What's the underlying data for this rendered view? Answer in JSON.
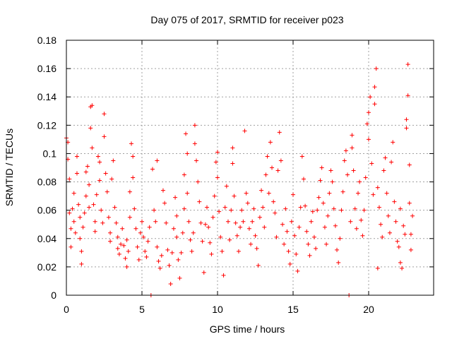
{
  "chart_data": {
    "type": "scatter",
    "title": "Day 075 of 2017, SRMTID for receiver p023",
    "xlabel": "GPS time / hours",
    "ylabel": "SRMTID / TECUs",
    "xlim": [
      0,
      24.3
    ],
    "ylim": [
      0,
      0.18
    ],
    "x_ticks": [
      0,
      5,
      10,
      15,
      20
    ],
    "y_ticks": [
      0,
      0.02,
      0.04,
      0.06,
      0.08,
      0.1,
      0.12,
      0.14,
      0.16,
      0.18
    ],
    "x_tick_labels": [
      "0",
      "5",
      "10",
      "15",
      "20"
    ],
    "y_tick_labels": [
      "0",
      "0.02",
      "0.04",
      "0.06",
      "0.08",
      "0.1",
      "0.12",
      "0.14",
      "0.16",
      "0.18"
    ],
    "grid": true,
    "marker": "+",
    "color": "#ff0000",
    "series": [
      {
        "name": "SRMTID",
        "points": [
          [
            0.0,
            0.111
          ],
          [
            0.1,
            0.108
          ],
          [
            0.1,
            0.096
          ],
          [
            0.2,
            0.082
          ],
          [
            0.2,
            0.058
          ],
          [
            0.3,
            0.047
          ],
          [
            0.3,
            0.034
          ],
          [
            0.4,
            0.061
          ],
          [
            0.5,
            0.072
          ],
          [
            0.5,
            0.052
          ],
          [
            0.6,
            0.044
          ],
          [
            0.7,
            0.098
          ],
          [
            0.7,
            0.086
          ],
          [
            0.8,
            0.064
          ],
          [
            0.9,
            0.055
          ],
          [
            0.9,
            0.04
          ],
          [
            1.0,
            0.031
          ],
          [
            1.0,
            0.022
          ],
          [
            1.1,
            0.048
          ],
          [
            1.2,
            0.058
          ],
          [
            1.3,
            0.07
          ],
          [
            1.3,
            0.087
          ],
          [
            1.4,
            0.091
          ],
          [
            1.5,
            0.078
          ],
          [
            1.5,
            0.062
          ],
          [
            1.6,
            0.133
          ],
          [
            1.6,
            0.118
          ],
          [
            1.7,
            0.134
          ],
          [
            1.7,
            0.104
          ],
          [
            1.8,
            0.064
          ],
          [
            1.9,
            0.052
          ],
          [
            1.9,
            0.045
          ],
          [
            2.0,
            0.071
          ],
          [
            2.1,
            0.098
          ],
          [
            2.2,
            0.094
          ],
          [
            2.2,
            0.081
          ],
          [
            2.3,
            0.06
          ],
          [
            2.4,
            0.051
          ],
          [
            2.5,
            0.128
          ],
          [
            2.5,
            0.112
          ],
          [
            2.6,
            0.086
          ],
          [
            2.7,
            0.073
          ],
          [
            2.8,
            0.055
          ],
          [
            2.9,
            0.044
          ],
          [
            2.9,
            0.038
          ],
          [
            3.0,
            0.082
          ],
          [
            3.1,
            0.095
          ],
          [
            3.2,
            0.062
          ],
          [
            3.3,
            0.051
          ],
          [
            3.4,
            0.041
          ],
          [
            3.4,
            0.033
          ],
          [
            3.5,
            0.029
          ],
          [
            3.6,
            0.036
          ],
          [
            3.7,
            0.047
          ],
          [
            3.8,
            0.035
          ],
          [
            3.9,
            0.026
          ],
          [
            4.0,
            0.02
          ],
          [
            4.0,
            0.039
          ],
          [
            4.1,
            0.031
          ],
          [
            4.2,
            0.055
          ],
          [
            4.2,
            0.073
          ],
          [
            4.3,
            0.107
          ],
          [
            4.4,
            0.098
          ],
          [
            4.4,
            0.083
          ],
          [
            4.5,
            0.061
          ],
          [
            4.6,
            0.047
          ],
          [
            4.7,
            0.034
          ],
          [
            4.8,
            0.025
          ],
          [
            4.9,
            0.044
          ],
          [
            5.0,
            0.052
          ],
          [
            5.1,
            0.041
          ],
          [
            5.2,
            0.031
          ],
          [
            5.3,
            0.027
          ],
          [
            5.4,
            0.038
          ],
          [
            5.5,
            0.048
          ],
          [
            5.6,
            0.0
          ],
          [
            5.7,
            0.089
          ],
          [
            5.8,
            0.06
          ],
          [
            5.9,
            0.052
          ],
          [
            6.0,
            0.034
          ],
          [
            6.0,
            0.095
          ],
          [
            6.1,
            0.024
          ],
          [
            6.2,
            0.019
          ],
          [
            6.3,
            0.028
          ],
          [
            6.4,
            0.074
          ],
          [
            6.5,
            0.065
          ],
          [
            6.6,
            0.051
          ],
          [
            6.7,
            0.032
          ],
          [
            6.8,
            0.021
          ],
          [
            6.9,
            0.008
          ],
          [
            7.0,
            0.03
          ],
          [
            7.1,
            0.047
          ],
          [
            7.2,
            0.069
          ],
          [
            7.3,
            0.056
          ],
          [
            7.3,
            0.041
          ],
          [
            7.4,
            0.025
          ],
          [
            7.5,
            0.012
          ],
          [
            7.6,
            0.03
          ],
          [
            7.7,
            0.044
          ],
          [
            7.8,
            0.061
          ],
          [
            7.8,
            0.085
          ],
          [
            7.9,
            0.114
          ],
          [
            8.0,
            0.1
          ],
          [
            8.0,
            0.072
          ],
          [
            8.1,
            0.052
          ],
          [
            8.2,
            0.039
          ],
          [
            8.3,
            0.031
          ],
          [
            8.4,
            0.044
          ],
          [
            8.5,
            0.12
          ],
          [
            8.5,
            0.107
          ],
          [
            8.6,
            0.095
          ],
          [
            8.7,
            0.08
          ],
          [
            8.8,
            0.066
          ],
          [
            8.9,
            0.051
          ],
          [
            9.0,
            0.038
          ],
          [
            9.1,
            0.016
          ],
          [
            9.2,
            0.05
          ],
          [
            9.3,
            0.062
          ],
          [
            9.4,
            0.048
          ],
          [
            9.5,
            0.037
          ],
          [
            9.6,
            0.029
          ],
          [
            9.7,
            0.055
          ],
          [
            9.8,
            0.07
          ],
          [
            9.9,
            0.094
          ],
          [
            10.0,
            0.101
          ],
          [
            10.0,
            0.083
          ],
          [
            10.1,
            0.059
          ],
          [
            10.2,
            0.041
          ],
          [
            10.3,
            0.031
          ],
          [
            10.4,
            0.014
          ],
          [
            10.5,
            0.062
          ],
          [
            10.6,
            0.077
          ],
          [
            10.7,
            0.052
          ],
          [
            10.8,
            0.039
          ],
          [
            10.9,
            0.06
          ],
          [
            11.0,
            0.104
          ],
          [
            11.0,
            0.093
          ],
          [
            11.1,
            0.07
          ],
          [
            11.2,
            0.051
          ],
          [
            11.3,
            0.042
          ],
          [
            11.4,
            0.031
          ],
          [
            11.5,
            0.048
          ],
          [
            11.6,
            0.06
          ],
          [
            11.7,
            0.052
          ],
          [
            11.8,
            0.116
          ],
          [
            11.9,
            0.072
          ],
          [
            12.0,
            0.065
          ],
          [
            12.1,
            0.047
          ],
          [
            12.2,
            0.036
          ],
          [
            12.3,
            0.052
          ],
          [
            12.4,
            0.061
          ],
          [
            12.5,
            0.042
          ],
          [
            12.6,
            0.033
          ],
          [
            12.7,
            0.021
          ],
          [
            12.8,
            0.055
          ],
          [
            12.9,
            0.074
          ],
          [
            13.0,
            0.062
          ],
          [
            13.1,
            0.048
          ],
          [
            13.2,
            0.085
          ],
          [
            13.3,
            0.098
          ],
          [
            13.4,
            0.072
          ],
          [
            13.5,
            0.108
          ],
          [
            13.6,
            0.09
          ],
          [
            13.7,
            0.066
          ],
          [
            13.8,
            0.058
          ],
          [
            13.9,
            0.041
          ],
          [
            14.0,
            0.088
          ],
          [
            14.1,
            0.115
          ],
          [
            14.2,
            0.095
          ],
          [
            14.3,
            0.05
          ],
          [
            14.4,
            0.036
          ],
          [
            14.5,
            0.061
          ],
          [
            14.6,
            0.045
          ],
          [
            14.7,
            0.031
          ],
          [
            14.8,
            0.022
          ],
          [
            14.9,
            0.052
          ],
          [
            15.0,
            0.071
          ],
          [
            15.1,
            0.042
          ],
          [
            15.2,
            0.029
          ],
          [
            15.3,
            0.017
          ],
          [
            15.4,
            0.048
          ],
          [
            15.5,
            0.062
          ],
          [
            15.6,
            0.098
          ],
          [
            15.7,
            0.082
          ],
          [
            15.8,
            0.063
          ],
          [
            15.9,
            0.045
          ],
          [
            16.0,
            0.036
          ],
          [
            16.1,
            0.028
          ],
          [
            16.2,
            0.052
          ],
          [
            16.3,
            0.059
          ],
          [
            16.4,
            0.041
          ],
          [
            16.5,
            0.033
          ],
          [
            16.6,
            0.06
          ],
          [
            16.7,
            0.069
          ],
          [
            16.8,
            0.081
          ],
          [
            16.9,
            0.09
          ],
          [
            17.0,
            0.065
          ],
          [
            17.1,
            0.048
          ],
          [
            17.2,
            0.036
          ],
          [
            17.3,
            0.056
          ],
          [
            17.4,
            0.072
          ],
          [
            17.5,
            0.088
          ],
          [
            17.6,
            0.08
          ],
          [
            17.7,
            0.061
          ],
          [
            17.8,
            0.049
          ],
          [
            17.9,
            0.032
          ],
          [
            18.0,
            0.023
          ],
          [
            18.1,
            0.04
          ],
          [
            18.2,
            0.06
          ],
          [
            18.3,
            0.073
          ],
          [
            18.4,
            0.095
          ],
          [
            18.5,
            0.102
          ],
          [
            18.6,
            0.085
          ],
          [
            18.7,
            0.0
          ],
          [
            18.8,
            0.052
          ],
          [
            18.9,
            0.113
          ],
          [
            18.9,
            0.104
          ],
          [
            19.0,
            0.088
          ],
          [
            19.1,
            0.061
          ],
          [
            19.2,
            0.047
          ],
          [
            19.3,
            0.072
          ],
          [
            19.4,
            0.08
          ],
          [
            19.5,
            0.053
          ],
          [
            19.6,
            0.042
          ],
          [
            19.7,
            0.06
          ],
          [
            19.8,
            0.083
          ],
          [
            19.9,
            0.121
          ],
          [
            20.0,
            0.129
          ],
          [
            20.0,
            0.11
          ],
          [
            20.1,
            0.14
          ],
          [
            20.2,
            0.093
          ],
          [
            20.3,
            0.071
          ],
          [
            20.4,
            0.135
          ],
          [
            20.4,
            0.147
          ],
          [
            20.5,
            0.16
          ],
          [
            20.6,
            0.076
          ],
          [
            20.6,
            0.019
          ],
          [
            20.7,
            0.062
          ],
          [
            20.8,
            0.05
          ],
          [
            20.9,
            0.041
          ],
          [
            21.0,
            0.088
          ],
          [
            21.1,
            0.097
          ],
          [
            21.2,
            0.072
          ],
          [
            21.3,
            0.056
          ],
          [
            21.4,
            0.044
          ],
          [
            21.5,
            0.094
          ],
          [
            21.6,
            0.108
          ],
          [
            21.7,
            0.066
          ],
          [
            21.8,
            0.052
          ],
          [
            21.9,
            0.038
          ],
          [
            22.0,
            0.034
          ],
          [
            22.1,
            0.061
          ],
          [
            22.1,
            0.023
          ],
          [
            22.2,
            0.019
          ],
          [
            22.3,
            0.049
          ],
          [
            22.4,
            0.043
          ],
          [
            22.5,
            0.124
          ],
          [
            22.5,
            0.118
          ],
          [
            22.6,
            0.163
          ],
          [
            22.6,
            0.141
          ],
          [
            22.7,
            0.092
          ],
          [
            22.7,
            0.065
          ],
          [
            22.8,
            0.043
          ],
          [
            22.8,
            0.032
          ],
          [
            22.9,
            0.056
          ]
        ]
      }
    ]
  }
}
